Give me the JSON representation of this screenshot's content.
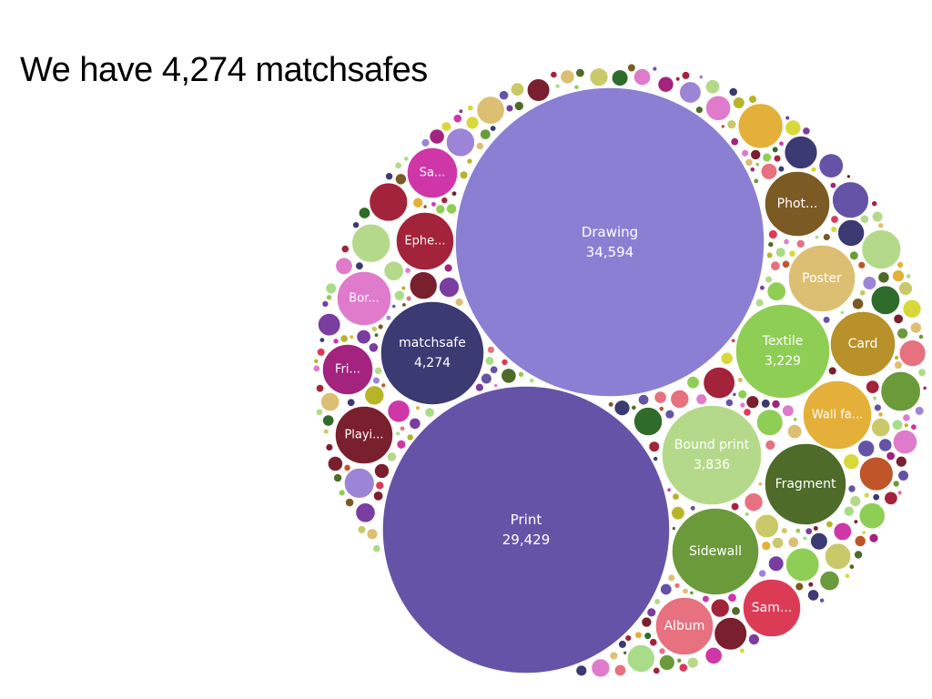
{
  "title": "We have 4,274 matchsafes",
  "chart_data": {
    "type": "bubble",
    "title": "We have 4,274 matchsafes",
    "bubbles": [
      {
        "label": "Drawing",
        "value": "34,594",
        "color": "#8b7fd3"
      },
      {
        "label": "Print",
        "value": "29,429",
        "color": "#6553a7"
      },
      {
        "label": "matchsafe",
        "value": "4,274",
        "color": "#3b3a72"
      },
      {
        "label": "Bound print",
        "value": "3,836",
        "color": "#b5d98a"
      },
      {
        "label": "Textile",
        "value": "3,229",
        "color": "#8fce54"
      },
      {
        "label": "Card",
        "color": "#b8912a"
      },
      {
        "label": "Wall fa...",
        "color": "#e4b03a"
      },
      {
        "label": "Fragment",
        "color": "#4e6b2a"
      },
      {
        "label": "Sidewall",
        "color": "#6b9a3a"
      },
      {
        "label": "Sam...",
        "color": "#dc3b56"
      },
      {
        "label": "Album",
        "color": "#e7717f"
      },
      {
        "label": "Poster",
        "color": "#ddbf73"
      },
      {
        "label": "Phot...",
        "color": "#7c5a24"
      },
      {
        "label": "Sa...",
        "color": "#cf36a8"
      },
      {
        "label": "Ephe...",
        "color": "#a3233a"
      },
      {
        "label": "Bor...",
        "color": "#e07bcb"
      },
      {
        "label": "Fri...",
        "color": "#a3237e"
      },
      {
        "label": "Playi...",
        "color": "#7a1f2e"
      }
    ],
    "palette": [
      "#8fce54",
      "#e7717f",
      "#a3233a",
      "#7c5a24",
      "#3b3a72",
      "#ddbf73",
      "#cf36a8",
      "#b8b42a",
      "#6553a7",
      "#dc3b56",
      "#4e6b2a",
      "#e07bcb",
      "#9c84d6",
      "#7a1f2e",
      "#b5d98a",
      "#e4b03a",
      "#6b9a3a",
      "#a3237e",
      "#d8d83a",
      "#2f6b2a",
      "#c0552a",
      "#7a3da0",
      "#a8dc88",
      "#c9c969"
    ]
  }
}
